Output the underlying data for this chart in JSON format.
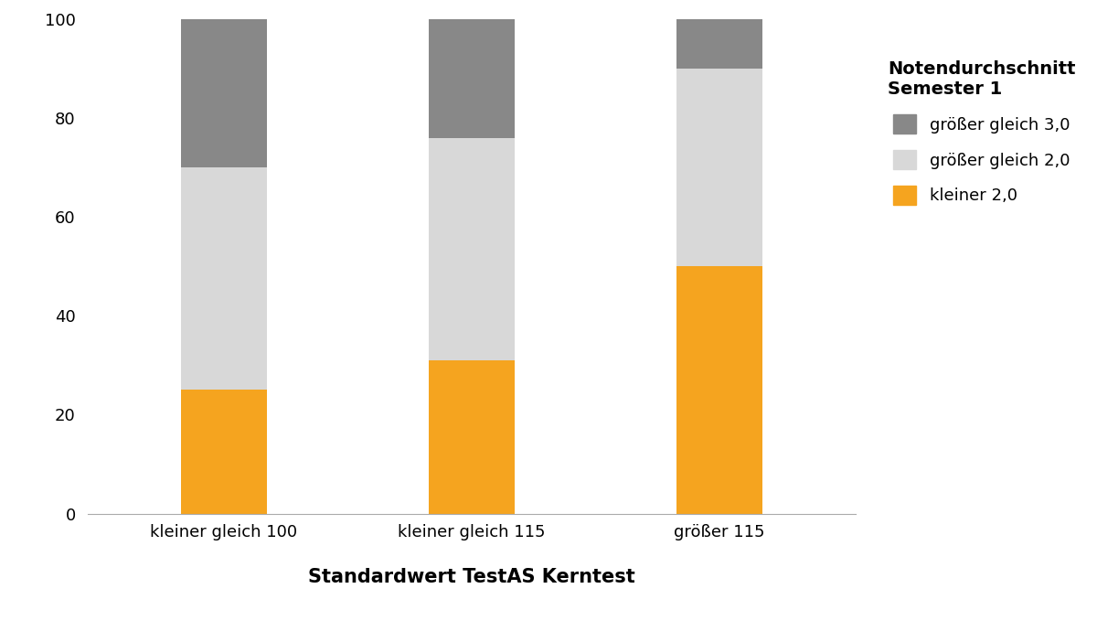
{
  "categories": [
    "kleiner gleich 100",
    "kleiner gleich 115",
    "größer 115"
  ],
  "kleiner_2": [
    25,
    31,
    50
  ],
  "groesser_gleich_2": [
    45,
    45,
    40
  ],
  "groesser_gleich_3": [
    30,
    24,
    10
  ],
  "color_kleiner_2": "#F5A41F",
  "color_groesser_gleich_2": "#D8D8D8",
  "color_groesser_gleich_3": "#888888",
  "legend_title": "Notendurchschnitt\nSemester 1",
  "legend_labels": [
    "größer gleich 3,0",
    "größer gleich 2,0",
    "kleiner 2,0"
  ],
  "xlabel": "Standardwert TestAS Kerntest",
  "ylim": [
    0,
    100
  ],
  "yticks": [
    0,
    20,
    40,
    60,
    80,
    100
  ],
  "background_color": "#ffffff",
  "bar_width": 0.35,
  "title_fontsize": 15,
  "tick_fontsize": 13,
  "legend_fontsize": 13,
  "legend_title_fontsize": 14
}
